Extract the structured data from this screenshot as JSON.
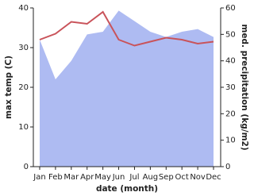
{
  "chart_data": {
    "type": "line",
    "xlabel": "date (month)",
    "ylabel": "max temp (C)",
    "y2label": "med. precipitation (kg/m2)",
    "categories": [
      "Jan",
      "Feb",
      "Mar",
      "Apr",
      "May",
      "Jun",
      "Jul",
      "Aug",
      "Sep",
      "Oct",
      "Nov",
      "Dec"
    ],
    "series": [
      {
        "name": "med. precipitation",
        "color": "#aebbf2",
        "axis": "y2",
        "values": [
          48,
          33,
          40,
          50,
          51,
          59,
          55,
          51,
          49,
          51,
          52,
          49
        ]
      },
      {
        "name": "max temp",
        "color": "#c9535a",
        "values": [
          32,
          33.5,
          36.5,
          36,
          39,
          32,
          30.5,
          31.5,
          32.5,
          32,
          31,
          31.5
        ]
      }
    ],
    "ylim": [
      0,
      40
    ],
    "yticks": [
      0,
      10,
      20,
      30,
      40
    ],
    "y2lim": [
      0,
      60
    ],
    "y2ticks": [
      0,
      10,
      20,
      30,
      40,
      50,
      60
    ]
  }
}
